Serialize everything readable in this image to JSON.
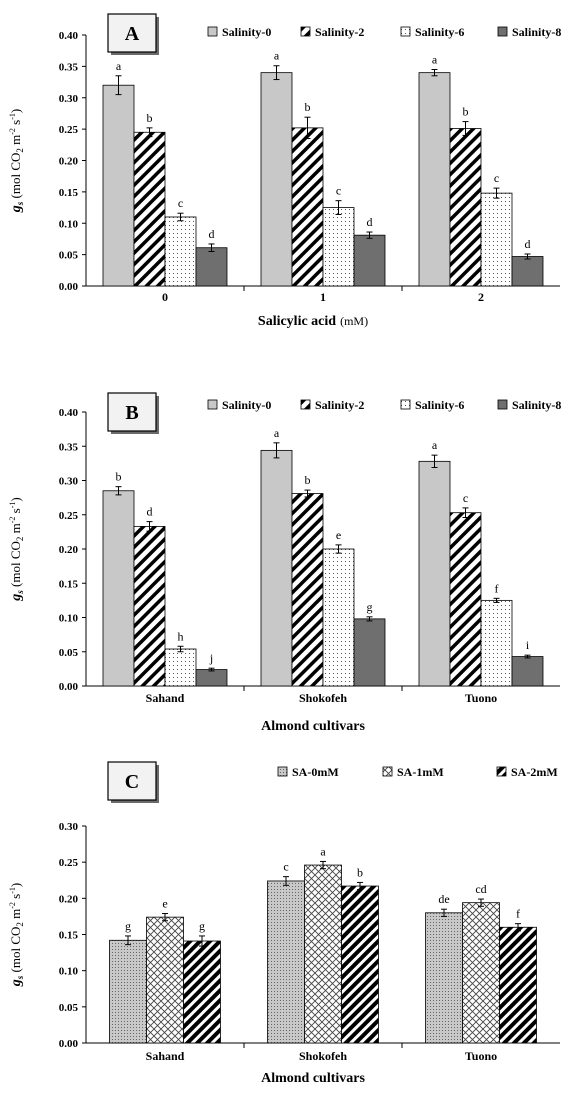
{
  "chart_data": [
    {
      "type": "bar",
      "panel_label": "A",
      "categories": [
        "0",
        "1",
        "2"
      ],
      "series": [
        {
          "name": "Salinity-0",
          "values": [
            0.32,
            0.34,
            0.34
          ],
          "errors": [
            0.015,
            0.011,
            0.005
          ],
          "letters": [
            "a",
            "a",
            "a"
          ],
          "fill": "gray"
        },
        {
          "name": "Salinity-2",
          "values": [
            0.245,
            0.252,
            0.251
          ],
          "errors": [
            0.007,
            0.017,
            0.011
          ],
          "letters": [
            "b",
            "b",
            "b"
          ],
          "fill": "diag"
        },
        {
          "name": "Salinity-6",
          "values": [
            0.11,
            0.125,
            0.148
          ],
          "errors": [
            0.006,
            0.011,
            0.008
          ],
          "letters": [
            "c",
            "c",
            "c"
          ],
          "fill": "dots"
        },
        {
          "name": "Salinity-8",
          "values": [
            0.061,
            0.081,
            0.047
          ],
          "errors": [
            0.006,
            0.005,
            0.004
          ],
          "letters": [
            "d",
            "d",
            "d"
          ],
          "fill": "dark"
        }
      ],
      "xlabel_main": "Salicylic acid",
      "xlabel_unit": "(mM)",
      "ylabel": "gs (mol CO2 m-2 s-1)",
      "ylim": [
        0,
        0.4
      ],
      "yticks": [
        "0.00",
        "0.05",
        "0.10",
        "0.15",
        "0.20",
        "0.25",
        "0.30",
        "0.35",
        "0.40"
      ],
      "legend_position": "top",
      "grid": false
    },
    {
      "type": "bar",
      "panel_label": "B",
      "categories": [
        "Sahand",
        "Shokofeh",
        "Tuono"
      ],
      "series": [
        {
          "name": "Salinity-0",
          "values": [
            0.285,
            0.344,
            0.328
          ],
          "errors": [
            0.006,
            0.011,
            0.009
          ],
          "letters": [
            "b",
            "a",
            "a"
          ],
          "fill": "gray"
        },
        {
          "name": "Salinity-2",
          "values": [
            0.233,
            0.281,
            0.253
          ],
          "errors": [
            0.007,
            0.005,
            0.007
          ],
          "letters": [
            "d",
            "b",
            "c"
          ],
          "fill": "diag"
        },
        {
          "name": "Salinity-6",
          "values": [
            0.054,
            0.2,
            0.125
          ],
          "errors": [
            0.004,
            0.006,
            0.003
          ],
          "letters": [
            "h",
            "e",
            "f"
          ],
          "fill": "dots"
        },
        {
          "name": "Salinity-8",
          "values": [
            0.024,
            0.098,
            0.043
          ],
          "errors": [
            0.002,
            0.003,
            0.002
          ],
          "letters": [
            "j",
            "g",
            "i"
          ],
          "fill": "dark"
        }
      ],
      "xlabel_main": "Almond cultivars",
      "xlabel_unit": "",
      "ylabel": "gs (mol CO2 m-2 s-1)",
      "ylim": [
        0,
        0.4
      ],
      "yticks": [
        "0.00",
        "0.05",
        "0.10",
        "0.15",
        "0.20",
        "0.25",
        "0.30",
        "0.35",
        "0.40"
      ],
      "legend_position": "top",
      "grid": false
    },
    {
      "type": "bar",
      "panel_label": "C",
      "categories": [
        "Sahand",
        "Shokofeh",
        "Tuono"
      ],
      "series": [
        {
          "name": "SA-0mM",
          "values": [
            0.142,
            0.224,
            0.18
          ],
          "errors": [
            0.006,
            0.006,
            0.005
          ],
          "letters": [
            "g",
            "c",
            "de"
          ],
          "fill": "dots-gray"
        },
        {
          "name": "SA-1mM",
          "values": [
            0.174,
            0.246,
            0.194
          ],
          "errors": [
            0.005,
            0.005,
            0.005
          ],
          "letters": [
            "e",
            "a",
            "cd"
          ],
          "fill": "cross"
        },
        {
          "name": "SA-2mM",
          "values": [
            0.141,
            0.217,
            0.16
          ],
          "errors": [
            0.007,
            0.005,
            0.005
          ],
          "letters": [
            "g",
            "b",
            "f"
          ],
          "fill": "diag-thick"
        }
      ],
      "xlabel_main": "Almond cultivars",
      "xlabel_unit": "",
      "ylabel": "gs (mol CO2 m-2 s-1)",
      "ylim": [
        0,
        0.3
      ],
      "yticks": [
        "0.00",
        "0.05",
        "0.10",
        "0.15",
        "0.20",
        "0.25",
        "0.30"
      ],
      "legend_position": "top",
      "grid": false
    }
  ]
}
